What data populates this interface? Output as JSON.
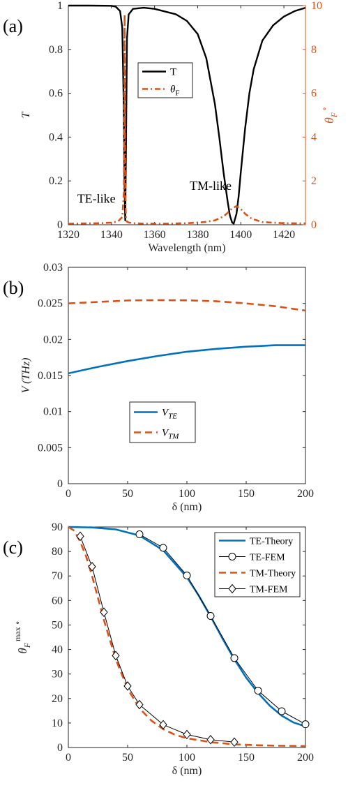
{
  "colors": {
    "axis": "#262626",
    "black": "#000000",
    "orange": "#D95319",
    "blue": "#0072BD"
  },
  "chart_data": [
    {
      "panel_label": "(a)",
      "type": "line",
      "x_ticks": [
        "1320",
        "1340",
        "1360",
        "1380",
        "1400",
        "1420"
      ],
      "x_tick_values": [
        1320,
        1340,
        1360,
        1380,
        1400,
        1420
      ],
      "y_ticks": [
        "0",
        "0.2",
        "0.4",
        "0.6",
        "0.8",
        "1"
      ],
      "y_tick_values": [
        0,
        0.2,
        0.4,
        0.6,
        0.8,
        1
      ],
      "y2_ticks": [
        "0",
        "2",
        "4",
        "6",
        "8",
        "10"
      ],
      "y2_tick_values": [
        0,
        2,
        4,
        6,
        8,
        10
      ],
      "xlabel": "Wavelength (nm)",
      "ylabel": "T",
      "y2label_main": "θ",
      "y2label_sub": "F",
      "y2label_sup": "∘",
      "xlim": [
        1320,
        1430
      ],
      "ylim": [
        0,
        1
      ],
      "y2lim": [
        0,
        10
      ],
      "legend_position": "center",
      "legend": [
        {
          "label": "T",
          "sub": ""
        },
        {
          "label": "θ",
          "sub": "F"
        }
      ],
      "annotations": [
        {
          "text": "TE-like",
          "x": 1333,
          "y": 0.1
        },
        {
          "text": "TM-like",
          "x": 1386,
          "y": 0.16
        }
      ],
      "series": [
        {
          "name": "T",
          "axis": "left",
          "color": "#000000",
          "style": "solid",
          "x": [
            1320,
            1330,
            1340,
            1342,
            1344,
            1345,
            1345.7,
            1346.1,
            1346.4,
            1346.7,
            1347.2,
            1348,
            1350,
            1355,
            1360,
            1370,
            1375,
            1380,
            1384,
            1388,
            1390,
            1392,
            1394,
            1395,
            1396,
            1396.7,
            1398,
            1399,
            1400,
            1402,
            1404,
            1406,
            1410,
            1415,
            1420,
            1425,
            1430
          ],
          "y": [
            1,
            1,
            0.999,
            0.995,
            0.975,
            0.9,
            0.55,
            0.15,
            0.02,
            0.3,
            0.85,
            0.96,
            0.985,
            0.99,
            0.985,
            0.96,
            0.93,
            0.87,
            0.76,
            0.55,
            0.4,
            0.24,
            0.1,
            0.04,
            0.01,
            0.005,
            0.05,
            0.13,
            0.24,
            0.44,
            0.6,
            0.71,
            0.84,
            0.91,
            0.95,
            0.975,
            0.99
          ]
        },
        {
          "name": "θF",
          "axis": "right",
          "color": "#D95319",
          "style": "dashdot",
          "x": [
            1320,
            1335,
            1340,
            1343,
            1345,
            1345.8,
            1346.1,
            1346.4,
            1346.7,
            1347.1,
            1348,
            1350,
            1355,
            1365,
            1375,
            1383,
            1388,
            1392,
            1394,
            1396,
            1398,
            1400,
            1402,
            1405,
            1410,
            1420,
            1430
          ],
          "y": [
            0.05,
            0.07,
            0.1,
            0.15,
            0.35,
            1.5,
            9.6,
            1.5,
            0.35,
            0.15,
            0.1,
            0.07,
            0.05,
            0.05,
            0.07,
            0.12,
            0.2,
            0.38,
            0.55,
            0.75,
            0.85,
            0.72,
            0.5,
            0.28,
            0.12,
            0.07,
            0.06
          ]
        }
      ]
    },
    {
      "panel_label": "(b)",
      "type": "line",
      "x_ticks": [
        "0",
        "50",
        "100",
        "150",
        "200"
      ],
      "x_tick_values": [
        0,
        50,
        100,
        150,
        200
      ],
      "y_ticks": [
        "0",
        "0.005",
        "0.01",
        "0.015",
        "0.02",
        "0.025",
        "0.03"
      ],
      "y_tick_values": [
        0,
        0.005,
        0.01,
        0.015,
        0.02,
        0.025,
        0.03
      ],
      "xlabel": "δ (nm)",
      "ylabel": "V (THz)",
      "xlim": [
        0,
        200
      ],
      "ylim": [
        0,
        0.03
      ],
      "legend_position": "lower-center",
      "legend": [
        {
          "label": "V",
          "sub": "TE"
        },
        {
          "label": "V",
          "sub": "TM"
        }
      ],
      "series": [
        {
          "name": "VTE",
          "color": "#0072BD",
          "style": "solid",
          "x": [
            0,
            25,
            50,
            75,
            100,
            125,
            150,
            175,
            200
          ],
          "y": [
            0.0153,
            0.0162,
            0.017,
            0.0177,
            0.0183,
            0.0187,
            0.019,
            0.0192,
            0.0192
          ]
        },
        {
          "name": "VTM",
          "color": "#D95319",
          "style": "dashed",
          "x": [
            0,
            25,
            50,
            75,
            100,
            125,
            150,
            175,
            200
          ],
          "y": [
            0.025,
            0.0252,
            0.0254,
            0.02545,
            0.02542,
            0.0253,
            0.025,
            0.0246,
            0.024
          ]
        }
      ]
    },
    {
      "panel_label": "(c)",
      "type": "line",
      "x_ticks": [
        "0",
        "50",
        "100",
        "150",
        "200"
      ],
      "x_tick_values": [
        0,
        50,
        100,
        150,
        200
      ],
      "y_ticks": [
        "0",
        "10",
        "20",
        "30",
        "40",
        "50",
        "60",
        "70",
        "80",
        "90"
      ],
      "y_tick_values": [
        0,
        10,
        20,
        30,
        40,
        50,
        60,
        70,
        80,
        90
      ],
      "xlabel": "δ (nm)",
      "ylabel_main": "θ",
      "ylabel_sub": "F",
      "ylabel_sup": "max ∘",
      "xlim": [
        0,
        200
      ],
      "ylim": [
        0,
        90
      ],
      "legend_position": "top-right",
      "legend": [
        {
          "label": "TE-Theory"
        },
        {
          "label": "TE-FEM"
        },
        {
          "label": "TM-Theory"
        },
        {
          "label": "TM-FEM"
        }
      ],
      "series": [
        {
          "name": "TE-Theory",
          "color": "#0072BD",
          "style": "solid",
          "marker": "none",
          "x": [
            0,
            20,
            40,
            60,
            80,
            100,
            110,
            120,
            130,
            140,
            150,
            160,
            170,
            180,
            190,
            200
          ],
          "y": [
            90,
            89.8,
            89,
            86.5,
            80.5,
            69.5,
            62,
            53.5,
            44.5,
            36,
            28.5,
            22.3,
            17,
            13,
            10.2,
            8.6
          ]
        },
        {
          "name": "TE-FEM",
          "color": "#000000",
          "style": "solid",
          "marker": "circle",
          "x": [
            60,
            80,
            100,
            120,
            140,
            160,
            180,
            200
          ],
          "y": [
            87,
            81.5,
            70.2,
            53.7,
            36.5,
            23.2,
            14.8,
            9.5
          ]
        },
        {
          "name": "TM-Theory",
          "color": "#D95319",
          "style": "dashed",
          "marker": "none",
          "x": [
            0,
            5,
            10,
            15,
            20,
            25,
            30,
            35,
            40,
            50,
            60,
            70,
            80,
            90,
            100,
            120,
            140,
            160,
            180,
            200
          ],
          "y": [
            90,
            88.5,
            84,
            78,
            70,
            61,
            52,
            44,
            36,
            24,
            16,
            11,
            7.5,
            5.2,
            3.8,
            2.2,
            1.3,
            0.9,
            0.7,
            0.6
          ]
        },
        {
          "name": "TM-FEM",
          "color": "#000000",
          "style": "solid",
          "marker": "diamond",
          "x": [
            10,
            20,
            30,
            40,
            50,
            60,
            80,
            100,
            120,
            140
          ],
          "y": [
            86.2,
            73.8,
            55.2,
            37.5,
            25.1,
            17.5,
            9.3,
            5.3,
            3.2,
            2.2
          ]
        }
      ]
    }
  ]
}
